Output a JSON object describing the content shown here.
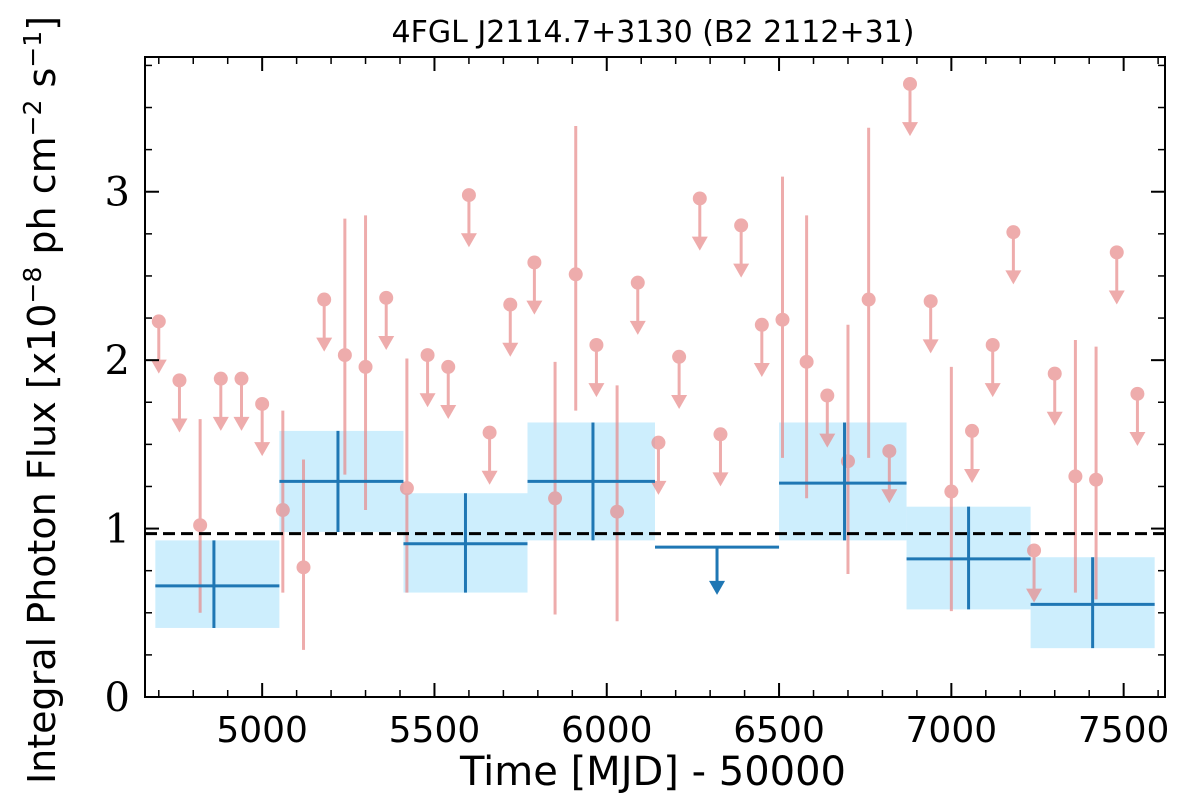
{
  "chart_data": {
    "type": "scatter",
    "title": "4FGL J2114.7+3130 (B2 2112+31)",
    "xlabel": "Time [MJD] - 50000",
    "ylabel": "Integral Photon Flux [x10",
    "ylabel_exp1": "−8",
    "ylabel_mid": " ph cm",
    "ylabel_exp2": "−2",
    "ylabel_mid2": " s",
    "ylabel_exp3": "−1",
    "ylabel_end": "]",
    "xlim": [
      4660,
      7620
    ],
    "ylim": [
      0,
      3.8
    ],
    "xticks": [
      5000,
      5500,
      6000,
      6500,
      7000,
      7500
    ],
    "xtick_labels": [
      "5000",
      "5500",
      "6000",
      "6500",
      "7000",
      "7500"
    ],
    "yticks": [
      0,
      1,
      2,
      3
    ],
    "ytick_labels": [
      "0",
      "1",
      "2",
      "3"
    ],
    "mean_flux": 0.97,
    "colors": {
      "short_bins": "#e88a8a",
      "long_bins": "#1f77b4",
      "long_bins_band": "#cdeefd",
      "mean_line": "#000000"
    },
    "short_bins": [
      {
        "x": 4700,
        "y": 2.23,
        "ul": true
      },
      {
        "x": 4760,
        "y": 1.88,
        "ul": true
      },
      {
        "x": 4820,
        "y": 1.02,
        "lo": 0.5,
        "hi": 1.65
      },
      {
        "x": 4880,
        "y": 1.89,
        "ul": true
      },
      {
        "x": 4940,
        "y": 1.89,
        "ul": true
      },
      {
        "x": 5000,
        "y": 1.74,
        "ul": true
      },
      {
        "x": 5060,
        "y": 1.11,
        "lo": 0.62,
        "hi": 1.7
      },
      {
        "x": 5120,
        "y": 0.77,
        "lo": 0.28,
        "hi": 1.41
      },
      {
        "x": 5180,
        "y": 2.36,
        "ul": true
      },
      {
        "x": 5240,
        "y": 2.03,
        "lo": 1.32,
        "hi": 2.84
      },
      {
        "x": 5300,
        "y": 1.96,
        "lo": 1.11,
        "hi": 2.86
      },
      {
        "x": 5360,
        "y": 2.37,
        "ul": true
      },
      {
        "x": 5420,
        "y": 1.24,
        "lo": 0.62,
        "hi": 2.01
      },
      {
        "x": 5480,
        "y": 2.03,
        "ul": true
      },
      {
        "x": 5540,
        "y": 1.96,
        "ul": true
      },
      {
        "x": 5600,
        "y": 2.98,
        "ul": true
      },
      {
        "x": 5660,
        "y": 1.57,
        "ul": true
      },
      {
        "x": 5720,
        "y": 2.33,
        "ul": true
      },
      {
        "x": 5790,
        "y": 2.58,
        "ul": true
      },
      {
        "x": 5850,
        "y": 1.18,
        "lo": 0.49,
        "hi": 1.99
      },
      {
        "x": 5910,
        "y": 2.51,
        "lo": 1.7,
        "hi": 3.39
      },
      {
        "x": 5970,
        "y": 2.09,
        "ul": true
      },
      {
        "x": 6030,
        "y": 1.1,
        "lo": 0.45,
        "hi": 1.85
      },
      {
        "x": 6090,
        "y": 2.46,
        "ul": true
      },
      {
        "x": 6150,
        "y": 1.51,
        "ul": true
      },
      {
        "x": 6210,
        "y": 2.02,
        "ul": true
      },
      {
        "x": 6270,
        "y": 2.96,
        "ul": true
      },
      {
        "x": 6330,
        "y": 1.56,
        "ul": true
      },
      {
        "x": 6390,
        "y": 2.8,
        "ul": true
      },
      {
        "x": 6450,
        "y": 2.21,
        "ul": true
      },
      {
        "x": 6510,
        "y": 2.24,
        "lo": 1.42,
        "hi": 3.09
      },
      {
        "x": 6580,
        "y": 1.99,
        "lo": 1.18,
        "hi": 2.86
      },
      {
        "x": 6640,
        "y": 1.79,
        "ul": true
      },
      {
        "x": 6700,
        "y": 1.4,
        "lo": 0.73,
        "hi": 2.21
      },
      {
        "x": 6760,
        "y": 2.36,
        "lo": 1.42,
        "hi": 3.38
      },
      {
        "x": 6820,
        "y": 1.46,
        "ul": true
      },
      {
        "x": 6880,
        "y": 3.64,
        "ul": true
      },
      {
        "x": 6940,
        "y": 2.35,
        "ul": true
      },
      {
        "x": 7000,
        "y": 1.22,
        "lo": 0.51,
        "hi": 1.96
      },
      {
        "x": 7060,
        "y": 1.58,
        "ul": true
      },
      {
        "x": 7120,
        "y": 2.09,
        "ul": true
      },
      {
        "x": 7180,
        "y": 2.76,
        "ul": true
      },
      {
        "x": 7240,
        "y": 0.87,
        "ul": true
      },
      {
        "x": 7300,
        "y": 1.92,
        "ul": true
      },
      {
        "x": 7360,
        "y": 1.31,
        "lo": 0.62,
        "hi": 2.12
      },
      {
        "x": 7420,
        "y": 1.29,
        "lo": 0.58,
        "hi": 2.08
      },
      {
        "x": 7480,
        "y": 2.64,
        "ul": true
      },
      {
        "x": 7540,
        "y": 1.8,
        "ul": true
      }
    ],
    "long_bins": [
      {
        "x0": 4690,
        "x1": 5050,
        "xc": 4860,
        "y": 0.66,
        "lo": 0.41,
        "hi": 0.93
      },
      {
        "x0": 5050,
        "x1": 5410,
        "xc": 5220,
        "y": 1.28,
        "lo": 0.98,
        "hi": 1.58
      },
      {
        "x0": 5410,
        "x1": 5770,
        "xc": 5590,
        "y": 0.91,
        "lo": 0.62,
        "hi": 1.21
      },
      {
        "x0": 5770,
        "x1": 6140,
        "xc": 5960,
        "y": 1.28,
        "lo": 0.93,
        "hi": 1.63
      },
      {
        "x0": 6140,
        "x1": 6500,
        "xc": 6320,
        "y": 0.89,
        "ul": true
      },
      {
        "x0": 6500,
        "x1": 6870,
        "xc": 6690,
        "y": 1.27,
        "lo": 0.93,
        "hi": 1.63
      },
      {
        "x0": 6870,
        "x1": 7230,
        "xc": 7050,
        "y": 0.82,
        "lo": 0.52,
        "hi": 1.13
      },
      {
        "x0": 7230,
        "x1": 7590,
        "xc": 7410,
        "y": 0.55,
        "lo": 0.29,
        "hi": 0.83
      }
    ]
  }
}
